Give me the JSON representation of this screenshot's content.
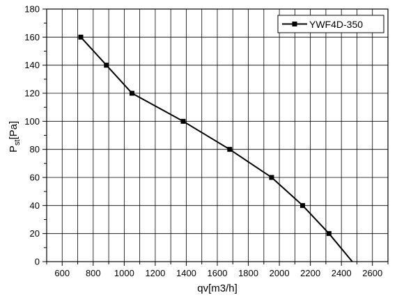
{
  "chart_data": {
    "type": "line",
    "xlabel": "qv[m3/h]",
    "ylabel_main": "P",
    "ylabel_sub": "st",
    "ylabel_unit": "[Pa]",
    "xlim": [
      500,
      2700
    ],
    "ylim": [
      0,
      180
    ],
    "xticks": [
      600,
      800,
      1000,
      1200,
      1400,
      1600,
      1800,
      2000,
      2200,
      2400,
      2600
    ],
    "yticks": [
      0,
      20,
      40,
      60,
      80,
      100,
      120,
      140,
      160,
      180
    ],
    "grid": true,
    "legend_position": "top-right",
    "series": [
      {
        "name": "YWF4D-350",
        "marker": "square",
        "color": "#000000",
        "points": [
          {
            "x": 720,
            "y": 160
          },
          {
            "x": 885,
            "y": 140
          },
          {
            "x": 1050,
            "y": 120
          },
          {
            "x": 1380,
            "y": 100
          },
          {
            "x": 1680,
            "y": 80
          },
          {
            "x": 1950,
            "y": 60
          },
          {
            "x": 2150,
            "y": 40
          },
          {
            "x": 2320,
            "y": 20
          }
        ],
        "line_end": {
          "x": 2470,
          "y": 0
        }
      }
    ]
  }
}
